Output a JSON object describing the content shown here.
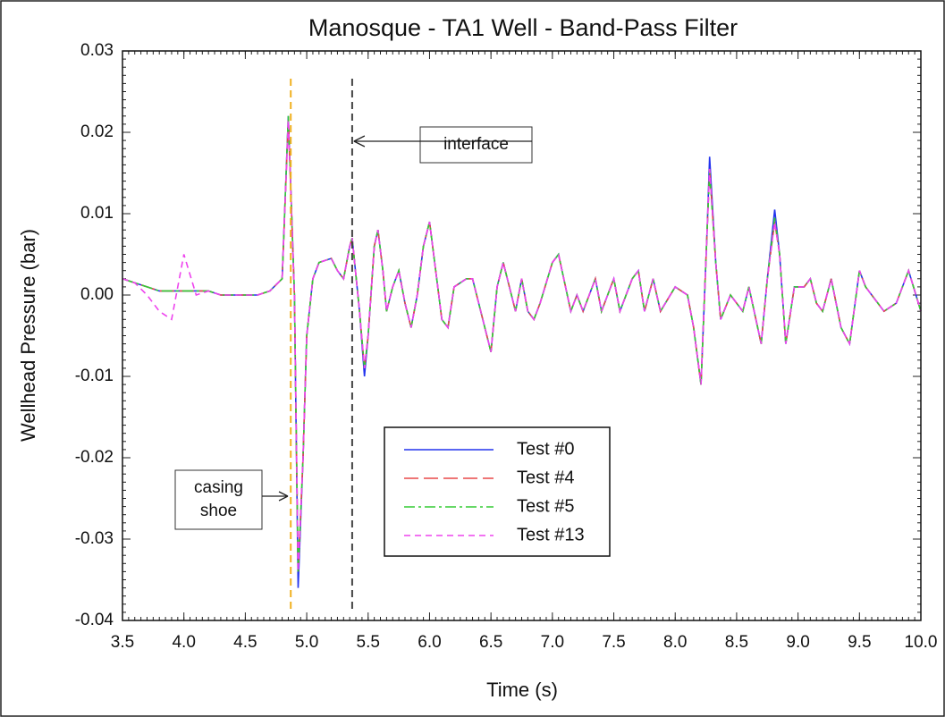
{
  "chart_data": {
    "type": "line",
    "title": "Manosque - TA1 Well - Band-Pass Filter",
    "x_label": "Time (s)",
    "y_label": "Wellhead Pressure (bar)",
    "xlim": [
      3.5,
      10.0
    ],
    "ylim": [
      -0.04,
      0.03
    ],
    "xticks": [
      3.5,
      {
        "value": 4,
        "label": "4.0"
      },
      4.5,
      {
        "value": 5,
        "label": "5.0"
      },
      5.5,
      {
        "value": 6,
        "label": "6.0"
      },
      6.5,
      {
        "value": 7,
        "label": "7.0"
      },
      7.5,
      {
        "value": 8,
        "label": "8.0"
      },
      8.5,
      {
        "value": 9,
        "label": "9.0"
      },
      9.5,
      {
        "value": 10,
        "label": "10.0"
      }
    ],
    "yticks": [
      {
        "value": -0.04,
        "label": "-0.04"
      },
      {
        "value": -0.03,
        "label": "-0.03"
      },
      {
        "value": -0.02,
        "label": "-0.02"
      },
      {
        "value": -0.01,
        "label": "-0.01"
      },
      {
        "value": 0,
        "label": "0.00"
      },
      {
        "value": 0.01,
        "label": "0.01"
      },
      {
        "value": 0.02,
        "label": "0.02"
      },
      0.03
    ],
    "x": [
      3.5,
      3.6,
      3.7,
      3.8,
      3.9,
      4.0,
      4.1,
      4.2,
      4.3,
      4.4,
      4.5,
      4.6,
      4.7,
      4.8,
      4.85,
      4.9,
      4.93,
      4.97,
      5.0,
      5.05,
      5.1,
      5.2,
      5.25,
      5.3,
      5.35,
      5.37,
      5.43,
      5.47,
      5.5,
      5.55,
      5.58,
      5.62,
      5.65,
      5.7,
      5.75,
      5.8,
      5.85,
      5.9,
      5.95,
      6.0,
      6.05,
      6.1,
      6.15,
      6.2,
      6.3,
      6.35,
      6.4,
      6.45,
      6.5,
      6.55,
      6.6,
      6.65,
      6.7,
      6.75,
      6.8,
      6.85,
      6.9,
      7.0,
      7.05,
      7.15,
      7.2,
      7.25,
      7.35,
      7.4,
      7.5,
      7.55,
      7.65,
      7.7,
      7.75,
      7.82,
      7.88,
      8.0,
      8.1,
      8.15,
      8.21,
      8.26,
      8.28,
      8.33,
      8.37,
      8.45,
      8.55,
      8.6,
      8.7,
      8.75,
      8.81,
      8.85,
      8.9,
      8.97,
      9.05,
      9.1,
      9.15,
      9.2,
      9.27,
      9.35,
      9.42,
      9.5,
      9.55,
      9.6,
      9.7,
      9.8,
      9.9,
      10.0
    ],
    "series": [
      {
        "name": "Test #0",
        "color": "#2233ee",
        "dash": "solid",
        "values": [
          0.002,
          0.0015,
          0.001,
          0.0005,
          0.0005,
          0.0005,
          0.0005,
          0.0005,
          0.0,
          0.0,
          0.0,
          0.0,
          0.0005,
          0.002,
          0.022,
          0.0,
          -0.036,
          -0.02,
          -0.005,
          0.002,
          0.004,
          0.0045,
          0.003,
          0.002,
          0.006,
          0.007,
          -0.002,
          -0.01,
          -0.005,
          0.006,
          0.008,
          0.003,
          -0.002,
          0.001,
          0.003,
          -0.001,
          -0.004,
          0.0,
          0.006,
          0.009,
          0.003,
          -0.003,
          -0.004,
          0.001,
          0.002,
          0.002,
          -0.001,
          -0.004,
          -0.007,
          0.001,
          0.004,
          0.001,
          -0.002,
          0.002,
          -0.002,
          -0.003,
          -0.001,
          0.004,
          0.005,
          -0.002,
          0.0,
          -0.002,
          0.002,
          -0.002,
          0.002,
          -0.002,
          0.002,
          0.003,
          -0.002,
          0.002,
          -0.002,
          0.001,
          0.0,
          -0.004,
          -0.011,
          0.008,
          0.017,
          0.004,
          -0.003,
          0.0,
          -0.002,
          0.001,
          -0.006,
          0.002,
          0.0105,
          0.005,
          -0.006,
          0.001,
          0.001,
          0.002,
          -0.001,
          -0.002,
          0.002,
          -0.004,
          -0.006,
          0.003,
          0.001,
          0.0,
          -0.002,
          -0.001,
          0.003,
          -0.002
        ]
      },
      {
        "name": "Test #4",
        "color": "#e84848",
        "dash": "dashed",
        "values": [
          0.002,
          0.0015,
          0.001,
          0.0005,
          0.0005,
          0.0005,
          0.0005,
          0.0005,
          0.0,
          0.0,
          0.0,
          0.0,
          0.0005,
          0.002,
          0.0215,
          0.0,
          -0.034,
          -0.02,
          -0.005,
          0.002,
          0.004,
          0.0045,
          0.003,
          0.002,
          0.006,
          0.007,
          -0.002,
          -0.009,
          -0.005,
          0.006,
          0.008,
          0.003,
          -0.002,
          0.001,
          0.003,
          -0.001,
          -0.004,
          0.0,
          0.006,
          0.009,
          0.003,
          -0.003,
          -0.004,
          0.001,
          0.002,
          0.002,
          -0.001,
          -0.004,
          -0.007,
          0.001,
          0.004,
          0.001,
          -0.002,
          0.002,
          -0.002,
          -0.003,
          -0.001,
          0.004,
          0.005,
          -0.002,
          0.0,
          -0.002,
          0.002,
          -0.002,
          0.002,
          -0.002,
          0.002,
          0.003,
          -0.002,
          0.002,
          -0.002,
          0.001,
          0.0,
          -0.004,
          -0.011,
          0.008,
          0.0155,
          0.004,
          -0.003,
          0.0,
          -0.002,
          0.001,
          -0.006,
          0.002,
          0.009,
          0.005,
          -0.006,
          0.001,
          0.001,
          0.002,
          -0.001,
          -0.002,
          0.002,
          -0.004,
          -0.006,
          0.003,
          0.001,
          0.0,
          -0.002,
          -0.001,
          0.003,
          -0.002
        ]
      },
      {
        "name": "Test #5",
        "color": "#33cc33",
        "dash": "dashdot",
        "values": [
          0.002,
          0.0015,
          0.001,
          0.0005,
          0.0005,
          0.0005,
          0.0005,
          0.0005,
          0.0,
          0.0,
          0.0,
          0.0,
          0.0005,
          0.002,
          0.022,
          0.0,
          -0.034,
          -0.02,
          -0.005,
          0.002,
          0.004,
          0.0045,
          0.003,
          0.002,
          0.006,
          0.007,
          -0.002,
          -0.009,
          -0.005,
          0.006,
          0.008,
          0.003,
          -0.002,
          0.001,
          0.003,
          -0.001,
          -0.004,
          0.0,
          0.006,
          0.009,
          0.003,
          -0.003,
          -0.004,
          0.001,
          0.002,
          0.002,
          -0.001,
          -0.004,
          -0.007,
          0.001,
          0.004,
          0.001,
          -0.002,
          0.002,
          -0.002,
          -0.003,
          -0.001,
          0.004,
          0.005,
          -0.002,
          0.0,
          -0.002,
          0.002,
          -0.002,
          0.002,
          -0.002,
          0.002,
          0.003,
          -0.002,
          0.002,
          -0.002,
          0.001,
          0.0,
          -0.004,
          -0.011,
          0.008,
          0.015,
          0.004,
          -0.003,
          0.0,
          -0.002,
          0.001,
          -0.006,
          0.002,
          0.0095,
          0.005,
          -0.006,
          0.001,
          0.001,
          0.002,
          -0.001,
          -0.002,
          0.002,
          -0.004,
          -0.006,
          0.003,
          0.001,
          0.0,
          -0.002,
          -0.001,
          0.003,
          -0.002
        ]
      },
      {
        "name": "Test #13",
        "color": "#ee44ee",
        "dash": "dotted",
        "values": [
          0.002,
          0.0015,
          0.0,
          -0.002,
          -0.003,
          0.005,
          0.0,
          0.0005,
          0.0,
          0.0,
          0.0,
          0.0,
          0.0005,
          0.002,
          0.0215,
          0.0,
          -0.034,
          -0.02,
          -0.005,
          0.002,
          0.004,
          0.0045,
          0.003,
          0.002,
          0.006,
          0.007,
          -0.002,
          -0.009,
          -0.005,
          0.006,
          0.008,
          0.003,
          -0.002,
          0.001,
          0.003,
          -0.001,
          -0.004,
          0.0,
          0.006,
          0.009,
          0.003,
          -0.003,
          -0.004,
          0.001,
          0.002,
          0.002,
          -0.001,
          -0.004,
          -0.007,
          0.001,
          0.004,
          0.001,
          -0.002,
          0.002,
          -0.002,
          -0.003,
          -0.001,
          0.004,
          0.005,
          -0.002,
          0.0,
          -0.002,
          0.002,
          -0.002,
          0.002,
          -0.002,
          0.002,
          0.003,
          -0.002,
          0.002,
          -0.002,
          0.001,
          0.0,
          -0.004,
          -0.011,
          0.008,
          0.0155,
          0.004,
          -0.003,
          0.0,
          -0.002,
          0.001,
          -0.006,
          0.002,
          0.009,
          0.005,
          -0.006,
          0.001,
          0.001,
          0.002,
          -0.001,
          -0.002,
          0.002,
          -0.004,
          -0.006,
          0.003,
          0.001,
          0.0,
          -0.002,
          -0.001,
          0.003,
          -0.002
        ]
      }
    ],
    "vlines": [
      {
        "x": 4.87,
        "color": "#f0b020"
      },
      {
        "x": 5.37,
        "color": "#444444"
      }
    ],
    "annotations": [
      {
        "lines": [
          "interface"
        ]
      },
      {
        "lines": [
          "casing",
          "shoe"
        ]
      }
    ],
    "legend": "lower center"
  }
}
